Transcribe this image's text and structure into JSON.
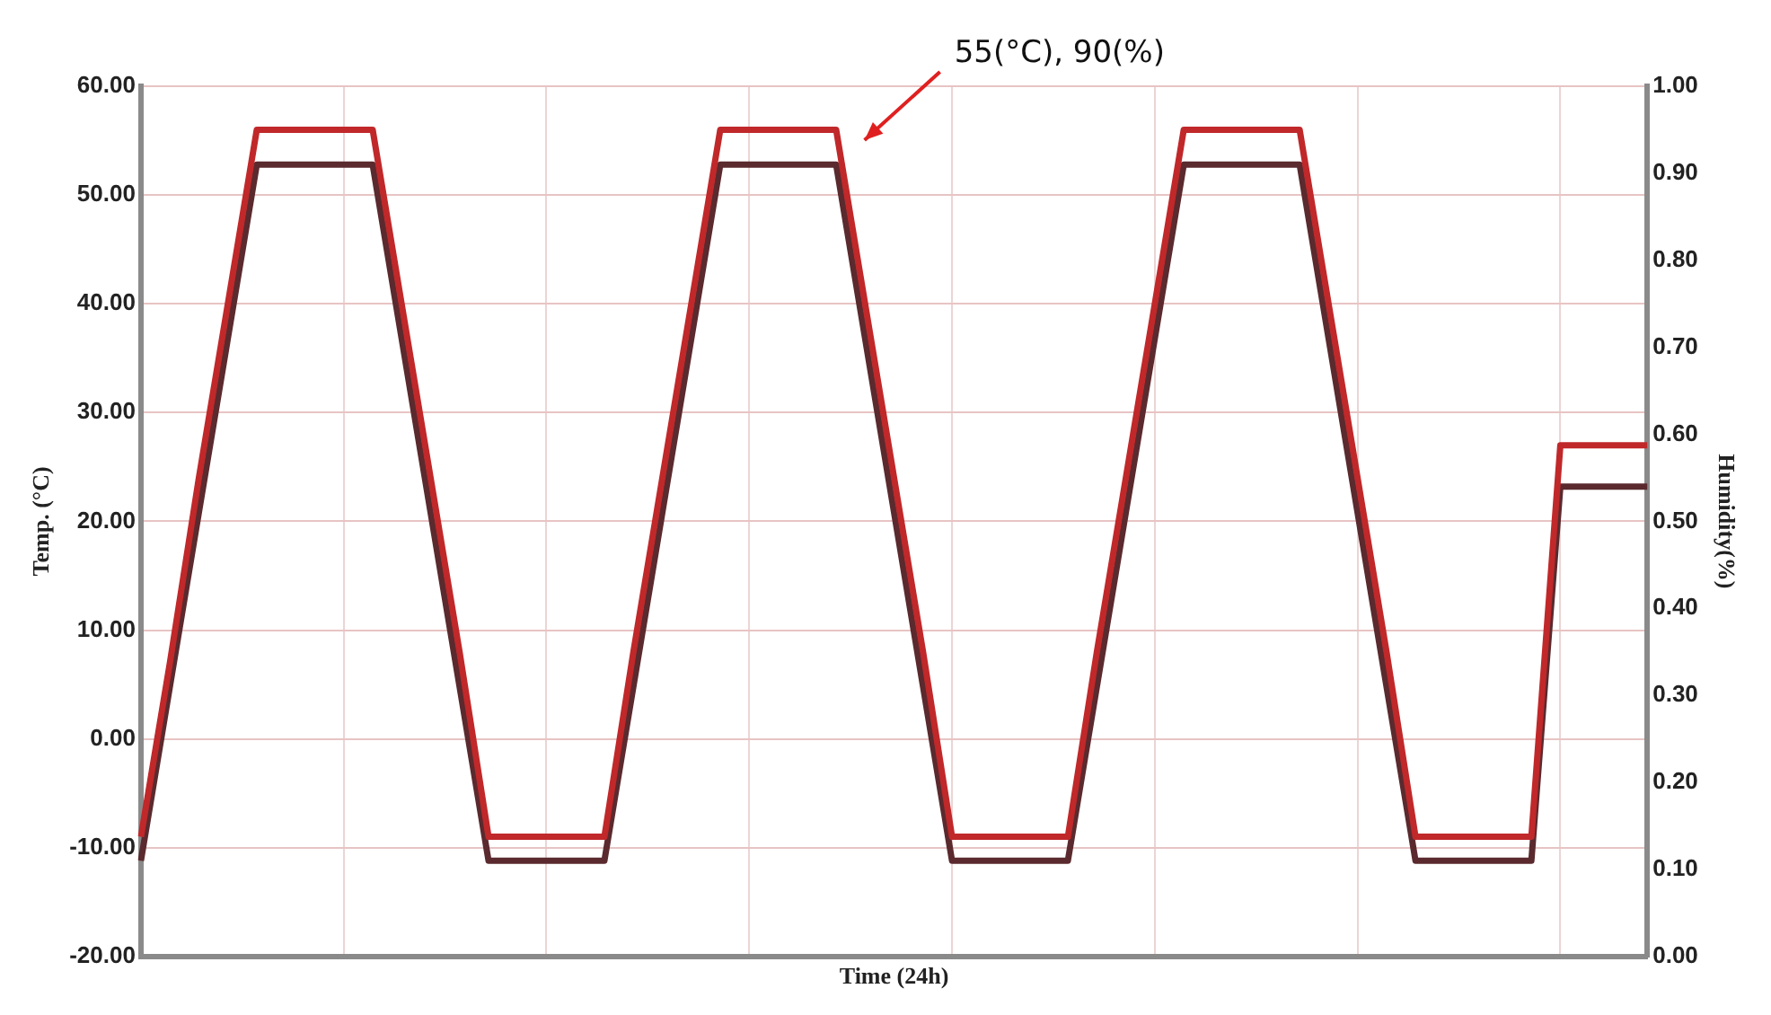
{
  "chart_data": {
    "type": "line",
    "xlabel": "Time (24h)",
    "ylabel": "Temp. (°C)",
    "y2label": "Humidity(%)",
    "annotations": [
      "55(°C), 90(%)"
    ],
    "categories": [
      null,
      null,
      null,
      null,
      null,
      null,
      null,
      null,
      null,
      null,
      null,
      null,
      null,
      null,
      null,
      null,
      null,
      null,
      null,
      null,
      null,
      null,
      null,
      null,
      null,
      null,
      null,
      null,
      null,
      null,
      null,
      null,
      null,
      null,
      null,
      null,
      null,
      null,
      null,
      null,
      null,
      null,
      null,
      null,
      null,
      null,
      null,
      null,
      null,
      null,
      null,
      null,
      null
    ],
    "series": [
      {
        "color": "#c0282a",
        "values": [
          -9,
          7,
          24,
          40,
          56,
          56,
          56,
          56,
          56,
          40,
          24,
          8,
          -9,
          -9,
          -9,
          -9,
          -9,
          8,
          24,
          40,
          56,
          56,
          56,
          56,
          56,
          40,
          24,
          8,
          -9,
          -9,
          -9,
          -9,
          -9,
          8,
          24,
          40,
          56,
          56,
          56,
          56,
          56,
          40,
          24,
          8,
          -9,
          -9,
          -9,
          -9,
          -9,
          27,
          27,
          27,
          27
        ]
      },
      {
        "color": "#5a2a2e",
        "axis": "y2",
        "values": [
          0.11,
          0.31,
          0.51,
          0.71,
          0.91,
          0.91,
          0.91,
          0.91,
          0.91,
          0.71,
          0.51,
          0.31,
          0.11,
          0.11,
          0.11,
          0.11,
          0.11,
          0.31,
          0.51,
          0.71,
          0.91,
          0.91,
          0.91,
          0.91,
          0.91,
          0.71,
          0.51,
          0.31,
          0.11,
          0.11,
          0.11,
          0.11,
          0.11,
          0.31,
          0.51,
          0.71,
          0.91,
          0.91,
          0.91,
          0.91,
          0.91,
          0.71,
          0.51,
          0.31,
          0.11,
          0.11,
          0.11,
          0.11,
          0.11,
          0.54,
          0.54,
          0.54,
          0.54
        ]
      }
    ],
    "ylim": [
      -20,
      60
    ],
    "yticks": [
      {
        "value": -20,
        "label": "-20.00"
      },
      {
        "value": -10,
        "label": "-10.00"
      },
      {
        "value": 0,
        "label": "0.00"
      },
      {
        "value": 10,
        "label": "10.00"
      },
      {
        "value": 20,
        "label": "20.00"
      },
      {
        "value": 30,
        "label": "30.00"
      },
      {
        "value": 40,
        "label": "40.00"
      },
      {
        "value": 50,
        "label": "50.00"
      },
      {
        "value": 60,
        "label": "60.00"
      }
    ],
    "y2lim": [
      0,
      1
    ],
    "y2ticks": [
      {
        "value": 0,
        "label": "0.00"
      },
      {
        "value": 0.1,
        "label": "0.10"
      },
      {
        "value": 0.2,
        "label": "0.20"
      },
      {
        "value": 0.3,
        "label": "0.30"
      },
      {
        "value": 0.4,
        "label": "0.40"
      },
      {
        "value": 0.5,
        "label": "0.50"
      },
      {
        "value": 0.6,
        "label": "0.60"
      },
      {
        "value": 0.7,
        "label": "0.70"
      },
      {
        "value": 0.8,
        "label": "0.80"
      },
      {
        "value": 0.9,
        "label": "0.90"
      },
      {
        "value": 1,
        "label": "1.00"
      }
    ],
    "grid": true,
    "legend": false,
    "marker": "none",
    "line_style": "solid"
  }
}
